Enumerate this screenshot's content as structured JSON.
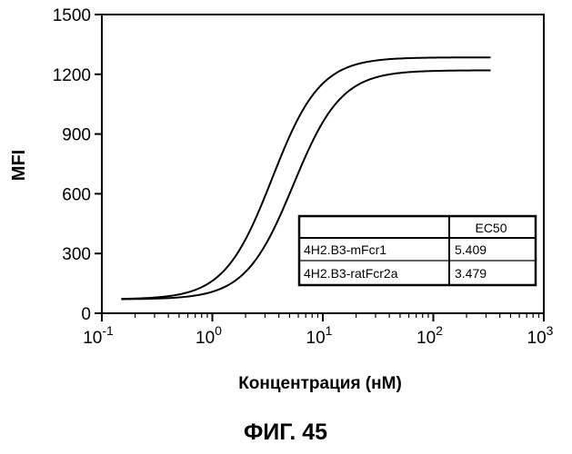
{
  "chart_data": {
    "type": "line",
    "xlabel": "Концентрация (нМ)",
    "ylabel": "MFI",
    "x_scale": "log",
    "x_ticks": [
      {
        "base": "10",
        "exp": "-1"
      },
      {
        "base": "10",
        "exp": "0"
      },
      {
        "base": "10",
        "exp": "1"
      },
      {
        "base": "10",
        "exp": "2"
      },
      {
        "base": "10",
        "exp": "3"
      }
    ],
    "xlim": [
      0.1,
      1000
    ],
    "ylim": [
      0,
      1500
    ],
    "y_ticks": [
      0,
      300,
      600,
      900,
      1200,
      1500
    ],
    "series": [
      {
        "name": "4H2.B3-ratFcr2a",
        "ec50": 3.479,
        "bottom": 70,
        "top": 1285,
        "hill": 2.0,
        "x_range": [
          0.15,
          330
        ],
        "x": [
          0.15,
          0.2,
          0.3,
          0.5,
          0.7,
          1,
          1.5,
          2,
          3,
          4,
          5,
          7,
          10,
          15,
          20,
          30,
          50,
          100,
          200,
          330
        ],
        "values": [
          72,
          74,
          79,
          93,
          112,
          147,
          219,
          304,
          507,
          687,
          833,
          1011,
          1137,
          1214,
          1244,
          1266,
          1279,
          1283,
          1285,
          1285
        ]
      },
      {
        "name": "4H2.B3-mFcr1",
        "ec50": 5.409,
        "bottom": 70,
        "top": 1220,
        "hill": 2.0,
        "x_range": [
          0.15,
          330
        ],
        "x": [
          0.15,
          0.2,
          0.3,
          0.5,
          0.7,
          1,
          1.5,
          2,
          3,
          4,
          5,
          7,
          10,
          15,
          20,
          30,
          50,
          100,
          200,
          330
        ],
        "values": [
          71,
          72,
          74,
          80,
          88,
          102,
          132,
          172,
          290,
          428,
          565,
          782,
          955,
          1089,
          1144,
          1187,
          1209,
          1217,
          1219,
          1220
        ]
      }
    ],
    "legend": {
      "header": [
        "",
        "EC50"
      ],
      "rows": [
        [
          "4H2.B3-mFcr1",
          "5.409"
        ],
        [
          "4H2.B3-ratFcr2a",
          "3.479"
        ]
      ],
      "placement": "bottom-right"
    },
    "grid": false
  },
  "caption": "ФИГ. 45"
}
